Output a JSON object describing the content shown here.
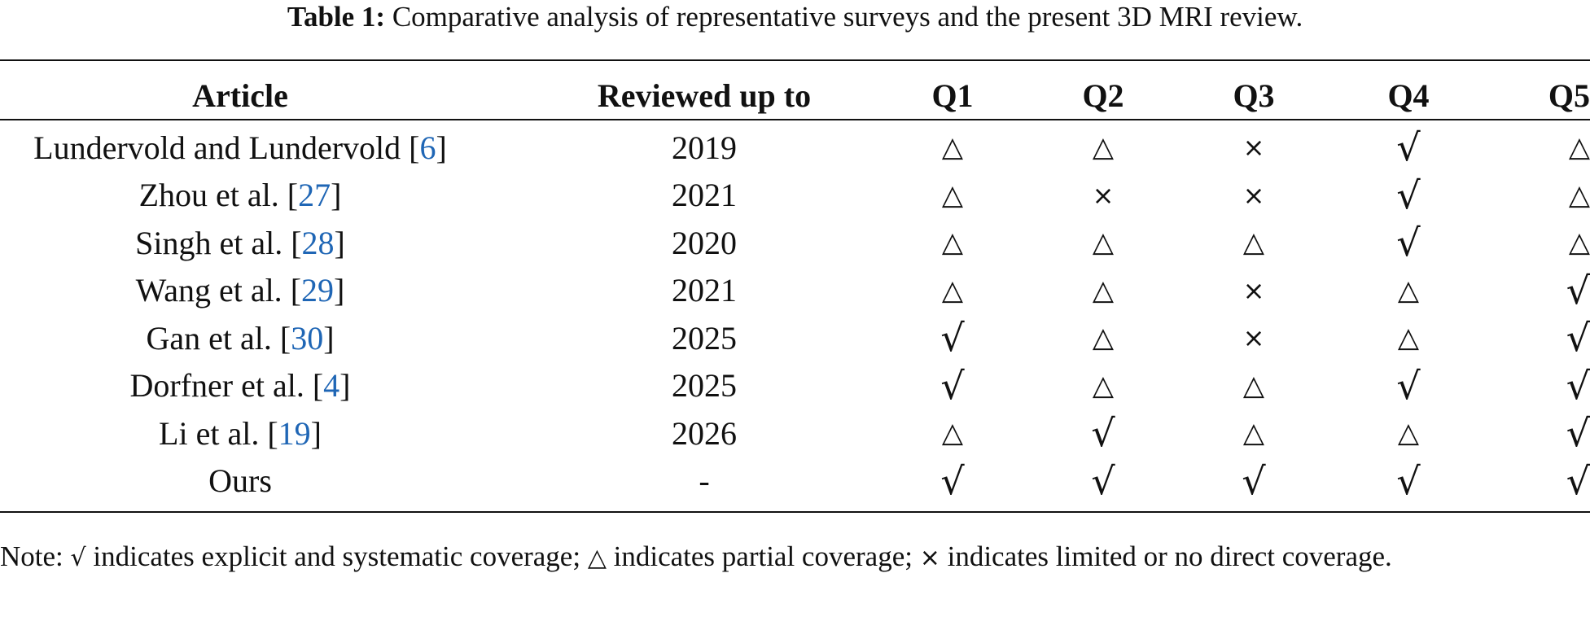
{
  "caption": {
    "label": "Table 1:",
    "text": "Comparative analysis of representative surveys and the present 3D MRI review."
  },
  "table": {
    "headers": {
      "article": "Article",
      "reviewed": "Reviewed up to",
      "q1": "Q1",
      "q2": "Q2",
      "q3": "Q3",
      "q4": "Q4",
      "q5": "Q5"
    },
    "rows": [
      {
        "name": "Lundervold and Lundervold",
        "ref": "6",
        "year": "2019",
        "q": [
          "△",
          "△",
          "×",
          "√",
          "△"
        ]
      },
      {
        "name": "Zhou et al.",
        "ref": "27",
        "year": "2021",
        "q": [
          "△",
          "×",
          "×",
          "√",
          "△"
        ]
      },
      {
        "name": "Singh et al.",
        "ref": "28",
        "year": "2020",
        "q": [
          "△",
          "△",
          "△",
          "√",
          "△"
        ]
      },
      {
        "name": "Wang et al.",
        "ref": "29",
        "year": "2021",
        "q": [
          "△",
          "△",
          "×",
          "△",
          "√"
        ]
      },
      {
        "name": "Gan et al.",
        "ref": "30",
        "year": "2025",
        "q": [
          "√",
          "△",
          "×",
          "△",
          "√"
        ]
      },
      {
        "name": "Dorfner et al.",
        "ref": "4",
        "year": "2025",
        "q": [
          "√",
          "△",
          "△",
          "√",
          "√"
        ]
      },
      {
        "name": "Li et al.",
        "ref": "19",
        "year": "2026",
        "q": [
          "△",
          "√",
          "△",
          "△",
          "√"
        ]
      },
      {
        "name": "Ours",
        "ref": "",
        "year": "-",
        "q": [
          "√",
          "√",
          "√",
          "√",
          "√"
        ]
      }
    ]
  },
  "note": {
    "prefix": "Note:",
    "check_symbol": "√",
    "check_text": "indicates explicit and systematic coverage;",
    "tri_symbol": "△",
    "tri_text": "indicates partial coverage;",
    "cross_symbol": "×",
    "cross_text": "indicates limited or no direct coverage."
  }
}
